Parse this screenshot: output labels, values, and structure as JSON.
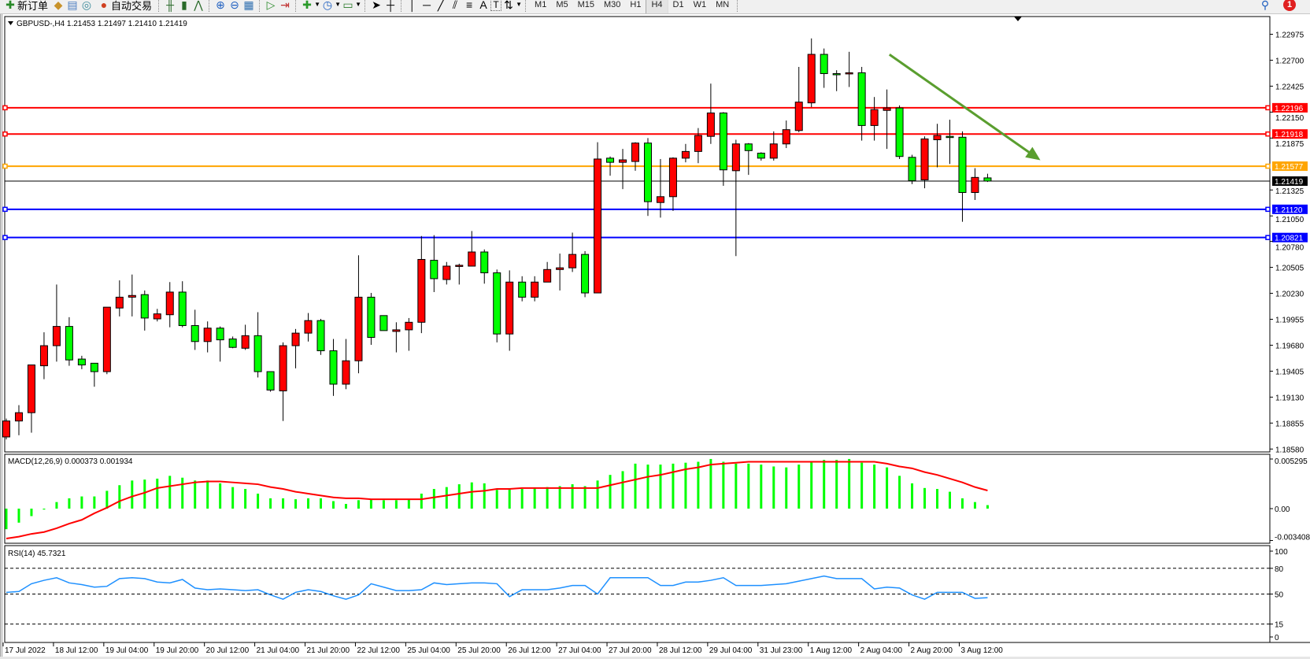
{
  "toolbar": {
    "new_order_label": "新订单",
    "auto_trading_label": "自动交易",
    "icons": [
      "new-order-icon",
      "data-folder-icon",
      "history-center-icon",
      "signals-icon",
      "auto-trading-icon",
      "bar-chart-icon",
      "candlestick-icon",
      "line-chart-icon",
      "zoom-in-icon",
      "zoom-out-icon",
      "tile-windows-icon",
      "autoscroll-icon",
      "chart-shift-icon",
      "indicators-icon",
      "periods-icon",
      "templates-icon",
      "cursor-icon",
      "crosshair-icon",
      "vertical-line-icon",
      "horizontal-line-icon",
      "trendline-icon",
      "equidistant-channel-icon",
      "fibonacci-icon",
      "text-icon",
      "text-label-icon",
      "arrows-icon"
    ],
    "text_tool": "A",
    "text_label_tool": "T",
    "timeframes": [
      "M1",
      "M5",
      "M15",
      "M30",
      "H1",
      "H4",
      "D1",
      "W1",
      "MN"
    ],
    "selected_timeframe": "H4",
    "notification_count": "1"
  },
  "chart": {
    "header": "GBPUSD-,H4  1.21453 1.21497 1.21410 1.21419",
    "macd_label": "MACD(12,26,9) 0.000373 0.001934",
    "rsi_label": "RSI(14) 45.7321"
  },
  "chart_data": {
    "type": "candlestick",
    "symbol": "GBPUSD-",
    "timeframe": "H4",
    "bull_color": "#FF0000",
    "bear_color": "#00FF00",
    "price_ylim": [
      1.1858,
      1.22975
    ],
    "price_ticks": [
      "1.22975",
      "1.22700",
      "1.22425",
      "1.22150",
      "1.21875",
      "1.21325",
      "1.21050",
      "1.20780",
      "1.20505",
      "1.20230",
      "1.19955",
      "1.19680",
      "1.19405",
      "1.19130",
      "1.18855",
      "1.18580"
    ],
    "time_labels": [
      "17 Jul 2022",
      "18 Jul 12:00",
      "19 Jul 04:00",
      "19 Jul 20:00",
      "20 Jul 12:00",
      "21 Jul 04:00",
      "21 Jul 20:00",
      "22 Jul 12:00",
      "25 Jul 04:00",
      "25 Jul 20:00",
      "26 Jul 12:00",
      "27 Jul 04:00",
      "27 Jul 20:00",
      "28 Jul 12:00",
      "29 Jul 04:00",
      "31 Jul 23:00",
      "1 Aug 12:00",
      "2 Aug 04:00",
      "2 Aug 20:00",
      "3 Aug 12:00"
    ],
    "time_label_every_bars": 4,
    "ohlc": [
      [
        1.18708,
        1.18903,
        1.18682,
        1.18877
      ],
      [
        1.18877,
        1.19045,
        1.18726,
        1.18965
      ],
      [
        1.18965,
        1.19471,
        1.18753,
        1.19471
      ],
      [
        1.19462,
        1.19817,
        1.1932,
        1.19675
      ],
      [
        1.19675,
        1.20323,
        1.19506,
        1.19879
      ],
      [
        1.19879,
        1.19977,
        1.19462,
        1.19524
      ],
      [
        1.19533,
        1.19568,
        1.19426,
        1.19471
      ],
      [
        1.19489,
        1.19489,
        1.1924,
        1.194
      ],
      [
        1.194,
        1.20083,
        1.19373,
        1.20083
      ],
      [
        1.20074,
        1.20367,
        1.19985,
        1.20189
      ],
      [
        1.20189,
        1.20429,
        1.19985,
        1.20207
      ],
      [
        1.20216,
        1.2026,
        1.19835,
        1.19968
      ],
      [
        1.19959,
        1.20065,
        1.19932,
        1.20012
      ],
      [
        1.20003,
        1.20349,
        1.1987,
        1.20243
      ],
      [
        1.20243,
        1.20358,
        1.1987,
        1.19888
      ],
      [
        1.19888,
        1.20056,
        1.1963,
        1.19719
      ],
      [
        1.19719,
        1.19932,
        1.19604,
        1.19861
      ],
      [
        1.19861,
        1.19879,
        1.19506,
        1.19737
      ],
      [
        1.19746,
        1.19772,
        1.19648,
        1.19657
      ],
      [
        1.19648,
        1.19897,
        1.1963,
        1.19781
      ],
      [
        1.19781,
        1.2003,
        1.19338,
        1.194
      ],
      [
        1.194,
        1.194,
        1.19187,
        1.19205
      ],
      [
        1.19196,
        1.1971,
        1.18877,
        1.19675
      ],
      [
        1.19675,
        1.19852,
        1.19435,
        1.19808
      ],
      [
        1.19808,
        1.20021,
        1.19719,
        1.19941
      ],
      [
        1.19941,
        1.19959,
        1.19577,
        1.19621
      ],
      [
        1.19621,
        1.19746,
        1.19143,
        1.19267
      ],
      [
        1.19267,
        1.19746,
        1.19214,
        1.19515
      ],
      [
        1.19515,
        1.20633,
        1.19382,
        1.20189
      ],
      [
        1.20189,
        1.20234,
        1.19684,
        1.19763
      ],
      [
        1.19994,
        1.19994,
        1.19835,
        1.19835
      ],
      [
        1.19826,
        1.19923,
        1.19604,
        1.19843
      ],
      [
        1.19843,
        1.19968,
        1.19621,
        1.19923
      ],
      [
        1.19923,
        1.20837,
        1.19808,
        1.20589
      ],
      [
        1.2058,
        1.20846,
        1.20243,
        1.20385
      ],
      [
        1.20376,
        1.20562,
        1.20323,
        1.20518
      ],
      [
        1.20518,
        1.20544,
        1.20323,
        1.20527
      ],
      [
        1.20518,
        1.2089,
        1.20518,
        1.20668
      ],
      [
        1.20668,
        1.20695,
        1.20332,
        1.20447
      ],
      [
        1.20447,
        1.20482,
        1.1971,
        1.19799
      ],
      [
        1.19799,
        1.20473,
        1.19621,
        1.20349
      ],
      [
        1.20349,
        1.20411,
        1.20145,
        1.20189
      ],
      [
        1.20189,
        1.20411,
        1.20145,
        1.20349
      ],
      [
        1.20349,
        1.20562,
        1.20349,
        1.20482
      ],
      [
        1.20482,
        1.20651,
        1.2026,
        1.205
      ],
      [
        1.205,
        1.20873,
        1.20456,
        1.20642
      ],
      [
        1.20642,
        1.20677,
        1.20189,
        1.20234
      ],
      [
        1.20234,
        1.21831,
        1.20234,
        1.21653
      ],
      [
        1.21662,
        1.2168,
        1.21476,
        1.21618
      ],
      [
        1.21618,
        1.2176,
        1.21334,
        1.21644
      ],
      [
        1.21627,
        1.21831,
        1.21529,
        1.21822
      ],
      [
        1.21822,
        1.21875,
        1.2105,
        1.21201
      ],
      [
        1.21192,
        1.21653,
        1.21032,
        1.21254
      ],
      [
        1.21254,
        1.21671,
        1.21103,
        1.21662
      ],
      [
        1.21662,
        1.21813,
        1.21618,
        1.21733
      ],
      [
        1.21733,
        1.21981,
        1.21609,
        1.21902
      ],
      [
        1.21893,
        1.22452,
        1.21813,
        1.22141
      ],
      [
        1.22141,
        1.2215,
        1.21369,
        1.21538
      ],
      [
        1.21529,
        1.21857,
        1.20624,
        1.21813
      ],
      [
        1.21813,
        1.21822,
        1.21485,
        1.21742
      ],
      [
        1.21715,
        1.21724,
        1.21636,
        1.21662
      ],
      [
        1.21662,
        1.21946,
        1.21636,
        1.21813
      ],
      [
        1.21813,
        1.22061,
        1.21769,
        1.21964
      ],
      [
        1.21955,
        1.22629,
        1.21937,
        1.22256
      ],
      [
        1.22248,
        1.22931,
        1.22203,
        1.22762
      ],
      [
        1.22762,
        1.22824,
        1.22407,
        1.22558
      ],
      [
        1.22558,
        1.22594,
        1.22372,
        1.22552
      ],
      [
        1.22558,
        1.22789,
        1.22416,
        1.22567
      ],
      [
        1.22567,
        1.22629,
        1.21848,
        1.22008
      ],
      [
        1.22008,
        1.2231,
        1.21848,
        1.22177
      ],
      [
        1.22168,
        1.2239,
        1.2176,
        1.22194
      ],
      [
        1.22194,
        1.22221,
        1.21653,
        1.2168
      ],
      [
        1.21671,
        1.21698,
        1.21387,
        1.21423
      ],
      [
        1.21432,
        1.21893,
        1.21343,
        1.21866
      ],
      [
        1.21857,
        1.22026,
        1.21565,
        1.21902
      ],
      [
        1.21893,
        1.2207,
        1.216,
        1.21884
      ],
      [
        1.21884,
        1.21946,
        1.20988,
        1.21298
      ],
      [
        1.21298,
        1.21556,
        1.21219,
        1.21458
      ],
      [
        1.21453,
        1.21497,
        1.2141,
        1.21419
      ]
    ],
    "horizontal_lines": [
      {
        "price": "1.22196",
        "color": "#FF0000"
      },
      {
        "price": "1.21918",
        "color": "#FF0000"
      },
      {
        "price": "1.21577",
        "color": "#FFA500"
      },
      {
        "price": "1.21120",
        "color": "#0000FF"
      },
      {
        "price": "1.20821",
        "color": "#0000FF"
      }
    ],
    "bid_line": {
      "price": "1.21419",
      "color": "#000000"
    },
    "trend_arrow": {
      "color": "#5A9E2F",
      "from": {
        "bar": 70.2,
        "price": 1.2276
      },
      "to": {
        "bar": 82.2,
        "price": 1.2164
      }
    },
    "macd": {
      "params": "12,26,9",
      "ylim": [
        -0.003408,
        0.005295
      ],
      "ticks": [
        "0.005295",
        "0.00",
        "-0.003408"
      ],
      "histogram_color": "#00FF00",
      "signal_color": "#FF0000",
      "histogram": [
        -0.0022,
        -0.0015,
        -0.0008,
        -0.0001,
        0.0007,
        0.0011,
        0.0013,
        0.0013,
        0.0019,
        0.0025,
        0.003,
        0.0031,
        0.0032,
        0.0035,
        0.0033,
        0.003,
        0.003,
        0.0027,
        0.0023,
        0.0021,
        0.0016,
        0.0011,
        0.0011,
        0.001,
        0.0011,
        0.0011,
        0.0008,
        0.0005,
        0.0009,
        0.001,
        0.0009,
        0.0009,
        0.001,
        0.0016,
        0.0021,
        0.0023,
        0.0026,
        0.0028,
        0.0027,
        0.002,
        0.0021,
        0.0021,
        0.0022,
        0.0023,
        0.0024,
        0.0026,
        0.0024,
        0.003,
        0.0036,
        0.004,
        0.0048,
        0.0047,
        0.0047,
        0.0048,
        0.0049,
        0.005,
        0.0053,
        0.005,
        0.0048,
        0.0048,
        0.0047,
        0.0045,
        0.0044,
        0.0047,
        0.005,
        0.0052,
        0.0052,
        0.0053,
        0.0049,
        0.0047,
        0.0044,
        0.0035,
        0.0027,
        0.0022,
        0.0021,
        0.0018,
        0.0011,
        0.0007,
        0.000373
      ],
      "signal": [
        -0.0032,
        -0.003,
        -0.0027,
        -0.0025,
        -0.0021,
        -0.0016,
        -0.0012,
        -0.0005,
        0.0001,
        0.0008,
        0.0013,
        0.0017,
        0.0022,
        0.0024,
        0.0026,
        0.0028,
        0.0029,
        0.0029,
        0.0028,
        0.0027,
        0.0026,
        0.0023,
        0.0021,
        0.0018,
        0.0016,
        0.0014,
        0.0012,
        0.0011,
        0.0011,
        0.001,
        0.001,
        0.001,
        0.001,
        0.001,
        0.0012,
        0.0014,
        0.0016,
        0.0018,
        0.0019,
        0.0021,
        0.0021,
        0.0022,
        0.0022,
        0.0022,
        0.0022,
        0.0022,
        0.0022,
        0.0022,
        0.0025,
        0.0028,
        0.0031,
        0.0034,
        0.0036,
        0.0039,
        0.0042,
        0.0044,
        0.0047,
        0.0048,
        0.0049,
        0.005,
        0.005,
        0.005,
        0.005,
        0.005,
        0.005,
        0.005,
        0.005,
        0.005,
        0.005,
        0.005,
        0.0048,
        0.0045,
        0.0043,
        0.0039,
        0.0036,
        0.0032,
        0.0028,
        0.0023,
        0.001934
      ]
    },
    "rsi": {
      "period": 14,
      "ylim": [
        0,
        100
      ],
      "ticks": [
        "100",
        "80",
        "50",
        "15",
        "0"
      ],
      "levels": [
        80,
        50,
        15
      ],
      "color": "#1E90FF",
      "values": [
        52,
        53,
        62,
        66,
        69,
        63,
        61,
        58,
        59,
        68,
        69,
        68,
        64,
        63,
        67,
        57,
        55,
        56,
        55,
        54,
        55,
        49,
        44,
        52,
        55,
        53,
        48,
        44,
        49,
        62,
        58,
        54,
        54,
        55,
        63,
        61,
        62,
        63,
        63,
        62,
        47,
        55,
        55,
        55,
        57,
        60,
        60,
        50,
        69,
        69,
        69,
        69,
        60,
        60,
        64,
        64,
        66,
        69,
        60,
        60,
        60,
        61,
        62,
        65,
        68,
        71,
        68,
        68,
        68,
        56,
        58,
        57,
        49,
        44,
        52,
        52,
        52,
        45,
        45.7321
      ]
    }
  }
}
